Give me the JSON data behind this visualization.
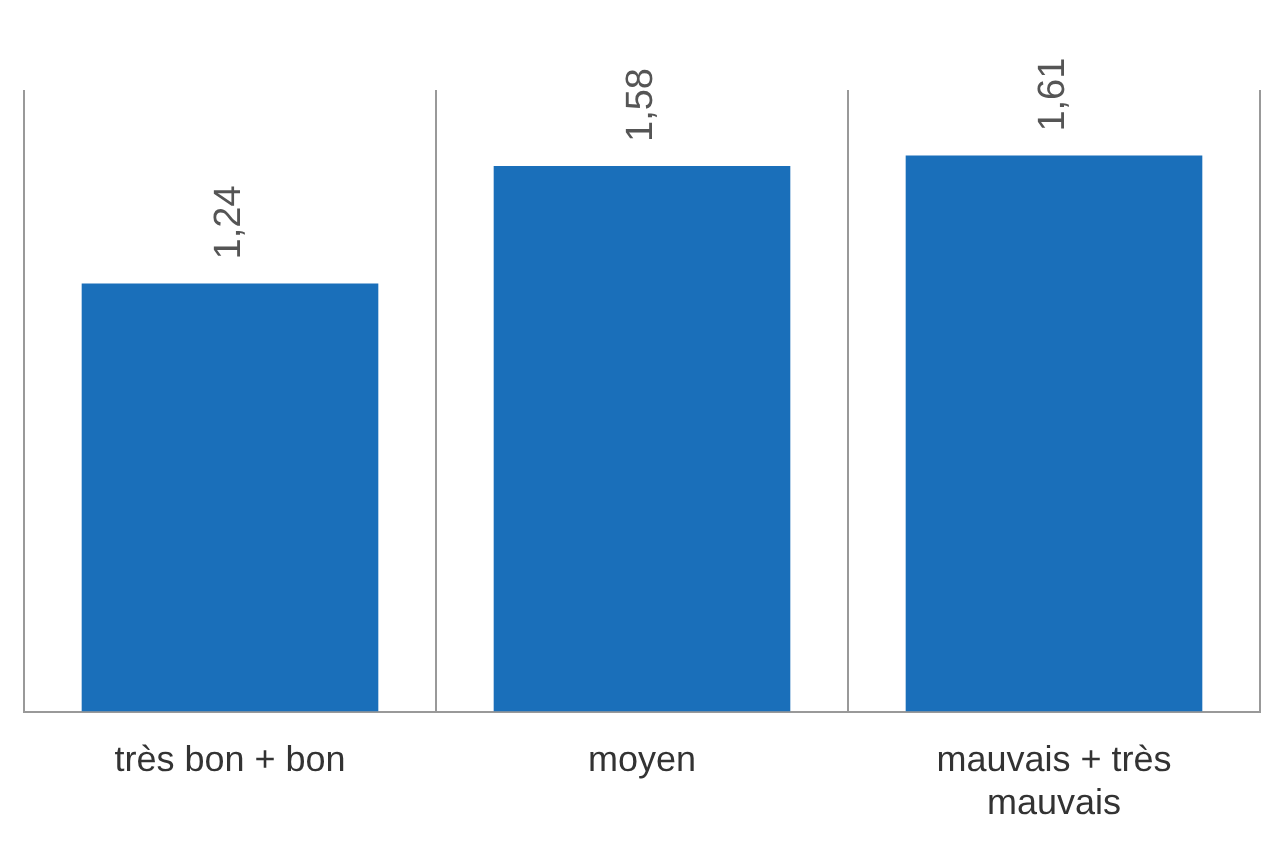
{
  "chart_data": {
    "type": "bar",
    "categories": [
      "très bon + bon",
      "moyen",
      "mauvais + très mauvais"
    ],
    "values": [
      1.24,
      1.58,
      1.61
    ],
    "color": "#1a6fba",
    "value_labels": [
      "1,24",
      "1,58",
      "1,61"
    ],
    "grid": "x",
    "legend": false
  }
}
